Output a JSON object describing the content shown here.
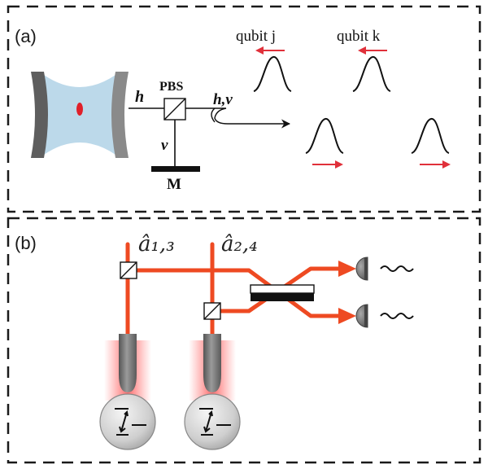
{
  "colors": {
    "frame": "#1a1a1a",
    "cavity_fill": "#bcd9ea",
    "mirror": "#6f6f6f",
    "atom": "#e0202a",
    "arrow_red": "#e0303a",
    "beam": "#ee4a22",
    "detector": "#7d7d7d",
    "glow": "#ff6a6a"
  },
  "panel_a": {
    "label": "(a)",
    "beam_h": "h",
    "pbs": "PBS",
    "beam_v": "v",
    "mirror": "M",
    "beam_hv": "h,v",
    "qubit_j": "qubit j",
    "qubit_k": "qubit k"
  },
  "panel_b": {
    "label": "(b)",
    "mode_13": "â₁,₃",
    "mode_24": "â₂,₄"
  }
}
